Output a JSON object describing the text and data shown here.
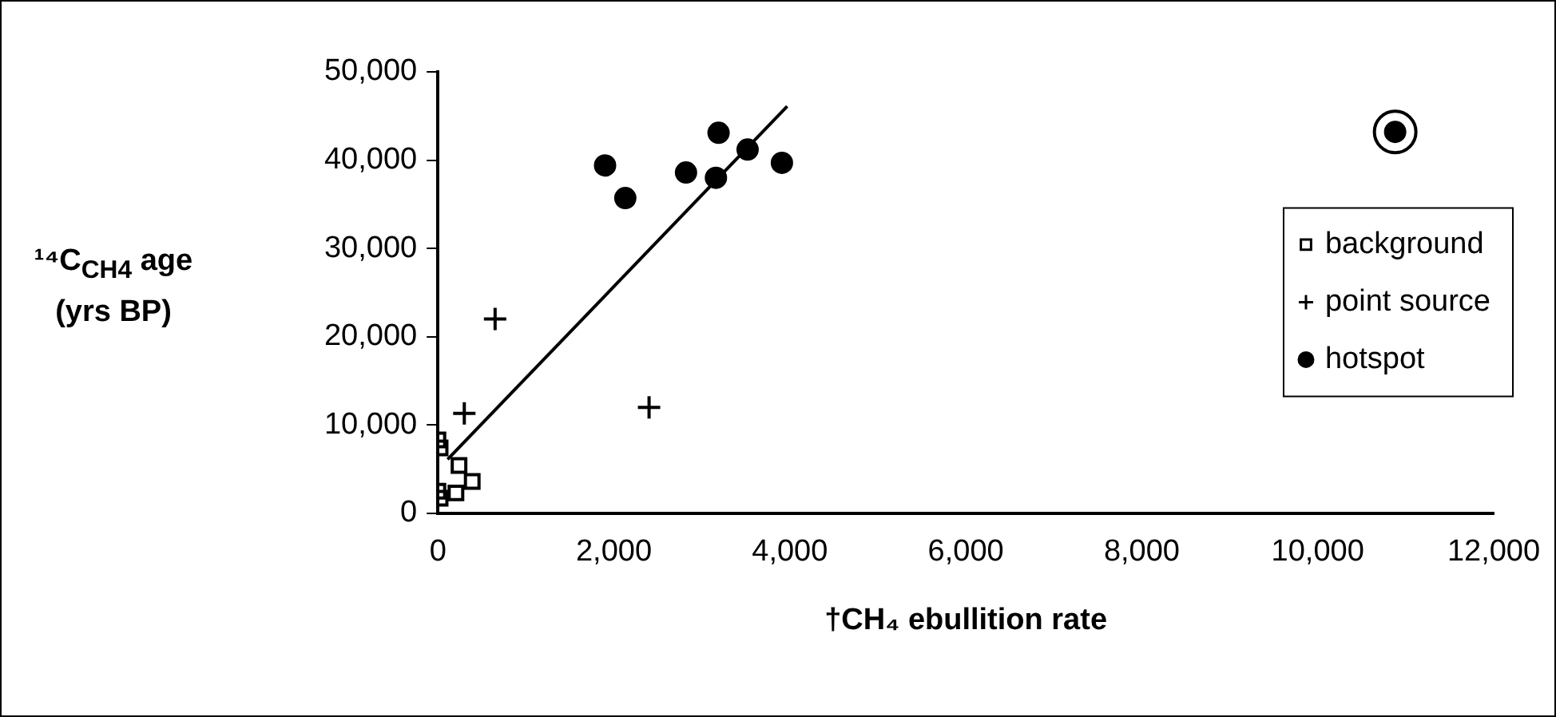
{
  "chart_data": {
    "type": "scatter",
    "xlabel": "†CH₄ ebullition rate",
    "ylabel": "¹⁴C$_{CH4}$ age (yrs BP)",
    "xlim": [
      0,
      12000
    ],
    "ylim": [
      0,
      50000
    ],
    "xticks": [
      {
        "value": 0,
        "label": "0"
      },
      {
        "value": 2000,
        "label": "2,000"
      },
      {
        "value": 4000,
        "label": "4,000"
      },
      {
        "value": 6000,
        "label": "6,000"
      },
      {
        "value": 8000,
        "label": "8,000"
      },
      {
        "value": 10000,
        "label": "10,000"
      },
      {
        "value": 12000,
        "label": "12,000"
      }
    ],
    "yticks": [
      {
        "value": 0,
        "label": "0"
      },
      {
        "value": 10000,
        "label": "10,000"
      },
      {
        "value": 20000,
        "label": "20,000"
      },
      {
        "value": 30000,
        "label": "30,000"
      },
      {
        "value": 40000,
        "label": "40,000"
      },
      {
        "value": 50000,
        "label": "50,000"
      }
    ],
    "grid": false,
    "legend": "right",
    "series": [
      {
        "name": "background",
        "color": "#000000",
        "marker": "square",
        "x": [
          0,
          25,
          240,
          390,
          0,
          205,
          25
        ],
        "values": [
          8300,
          7400,
          5400,
          3600,
          2500,
          2300,
          1700
        ]
      },
      {
        "name": "point source",
        "color": "#000000",
        "marker": "cross",
        "x": [
          650,
          300,
          2400
        ],
        "values": [
          22000,
          11300,
          12000
        ]
      },
      {
        "name": "hotspot",
        "color": "#000000",
        "marker": "circle",
        "x": [
          1900,
          2130,
          2820,
          3190,
          3160,
          3520,
          3910,
          10880
        ],
        "values": [
          39400,
          35700,
          38600,
          43100,
          38000,
          41200,
          39700,
          43200
        ]
      },
      {
        "type": "bubble",
        "color": "#000000",
        "x": [
          10880
        ],
        "values": [
          43200
        ],
        "sizes": [
          1
        ]
      },
      {
        "type": "line",
        "color": "#000000",
        "marker": "none",
        "x": [
          110,
          3970
        ],
        "values": [
          6100,
          46100
        ]
      }
    ]
  }
}
